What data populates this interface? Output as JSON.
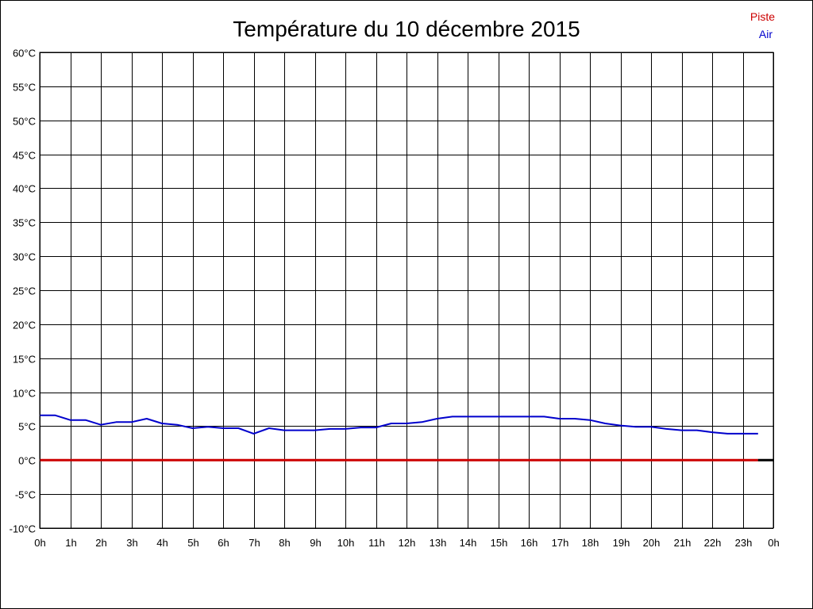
{
  "chart_data": {
    "type": "line",
    "title": "Température du 10 décembre 2015",
    "xlabel": "",
    "ylabel": "",
    "ylim": [
      -10,
      60
    ],
    "y_ticks": [
      "60°C",
      "55°C",
      "50°C",
      "45°C",
      "40°C",
      "35°C",
      "30°C",
      "25°C",
      "20°C",
      "15°C",
      "10°C",
      "5°C",
      "0°C",
      "-5°C",
      "-10°C"
    ],
    "x_ticks": [
      "0h",
      "1h",
      "2h",
      "3h",
      "4h",
      "5h",
      "6h",
      "7h",
      "8h",
      "9h",
      "10h",
      "11h",
      "12h",
      "13h",
      "14h",
      "15h",
      "16h",
      "17h",
      "18h",
      "19h",
      "20h",
      "21h",
      "22h",
      "23h",
      "0h"
    ],
    "xlim": [
      0,
      24
    ],
    "grid": true,
    "legend_position": "top-right",
    "series": [
      {
        "name": "Piste",
        "color": "#cc0000",
        "x": [
          0,
          23.5
        ],
        "values": [
          0,
          0
        ]
      },
      {
        "name": "Air",
        "color": "#0000cc",
        "x": [
          0,
          0.5,
          1,
          1.5,
          2,
          2.5,
          3,
          3.5,
          4,
          4.5,
          5,
          5.5,
          6,
          6.5,
          7,
          7.5,
          8,
          8.5,
          9,
          9.5,
          10,
          10.5,
          11,
          11.5,
          12,
          12.5,
          13,
          13.5,
          14,
          14.5,
          15,
          15.5,
          16,
          16.5,
          17,
          17.5,
          18,
          18.5,
          19,
          19.5,
          20,
          20.5,
          21,
          21.5,
          22,
          22.5,
          23,
          23.5
        ],
        "values": [
          6.6,
          6.6,
          5.9,
          5.9,
          5.2,
          5.6,
          5.6,
          6.1,
          5.4,
          5.2,
          4.7,
          4.9,
          4.7,
          4.7,
          3.9,
          4.7,
          4.4,
          4.4,
          4.4,
          4.6,
          4.6,
          4.8,
          4.8,
          5.4,
          5.4,
          5.6,
          6.1,
          6.4,
          6.4,
          6.4,
          6.4,
          6.4,
          6.4,
          6.4,
          6.1,
          6.1,
          5.9,
          5.4,
          5.1,
          4.9,
          4.9,
          4.6,
          4.4,
          4.4,
          4.1,
          3.9,
          3.9,
          3.9
        ]
      }
    ]
  }
}
